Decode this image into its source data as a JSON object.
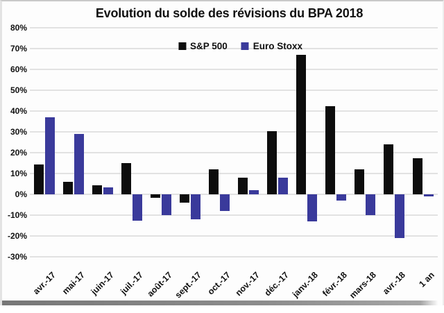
{
  "chart_data": {
    "type": "bar",
    "title": "Evolution du solde des révisions du BPA 2018",
    "categories": [
      "avr.-17",
      "mai-17",
      "juin-17",
      "juil.-17",
      "août-17",
      "sept.-17",
      "oct.-17",
      "nov.-17",
      "déc.-17",
      "janv.-18",
      "févr.-18",
      "mars-18",
      "avr.-18",
      "1 an"
    ],
    "series": [
      {
        "name": "S&P 500",
        "color": "#0d0d0d",
        "values": [
          14.5,
          6,
          4.5,
          15,
          -1.5,
          -4,
          12,
          8,
          30.5,
          67,
          42.5,
          12,
          24,
          17.5
        ]
      },
      {
        "name": "Euro Stoxx",
        "color": "#3a3a9b",
        "values": [
          37,
          29,
          3.5,
          -12.5,
          -10,
          -12,
          -8,
          2,
          8,
          -13,
          -3,
          -10,
          -21,
          -1
        ]
      }
    ],
    "xlabel": "",
    "ylabel": "",
    "ylim": [
      -30,
      80
    ],
    "ytick_step": 10,
    "ytick_suffix": "%",
    "grid": "horizontal",
    "legend_position": "top-center",
    "gridline_color": "#e2e2e2"
  }
}
